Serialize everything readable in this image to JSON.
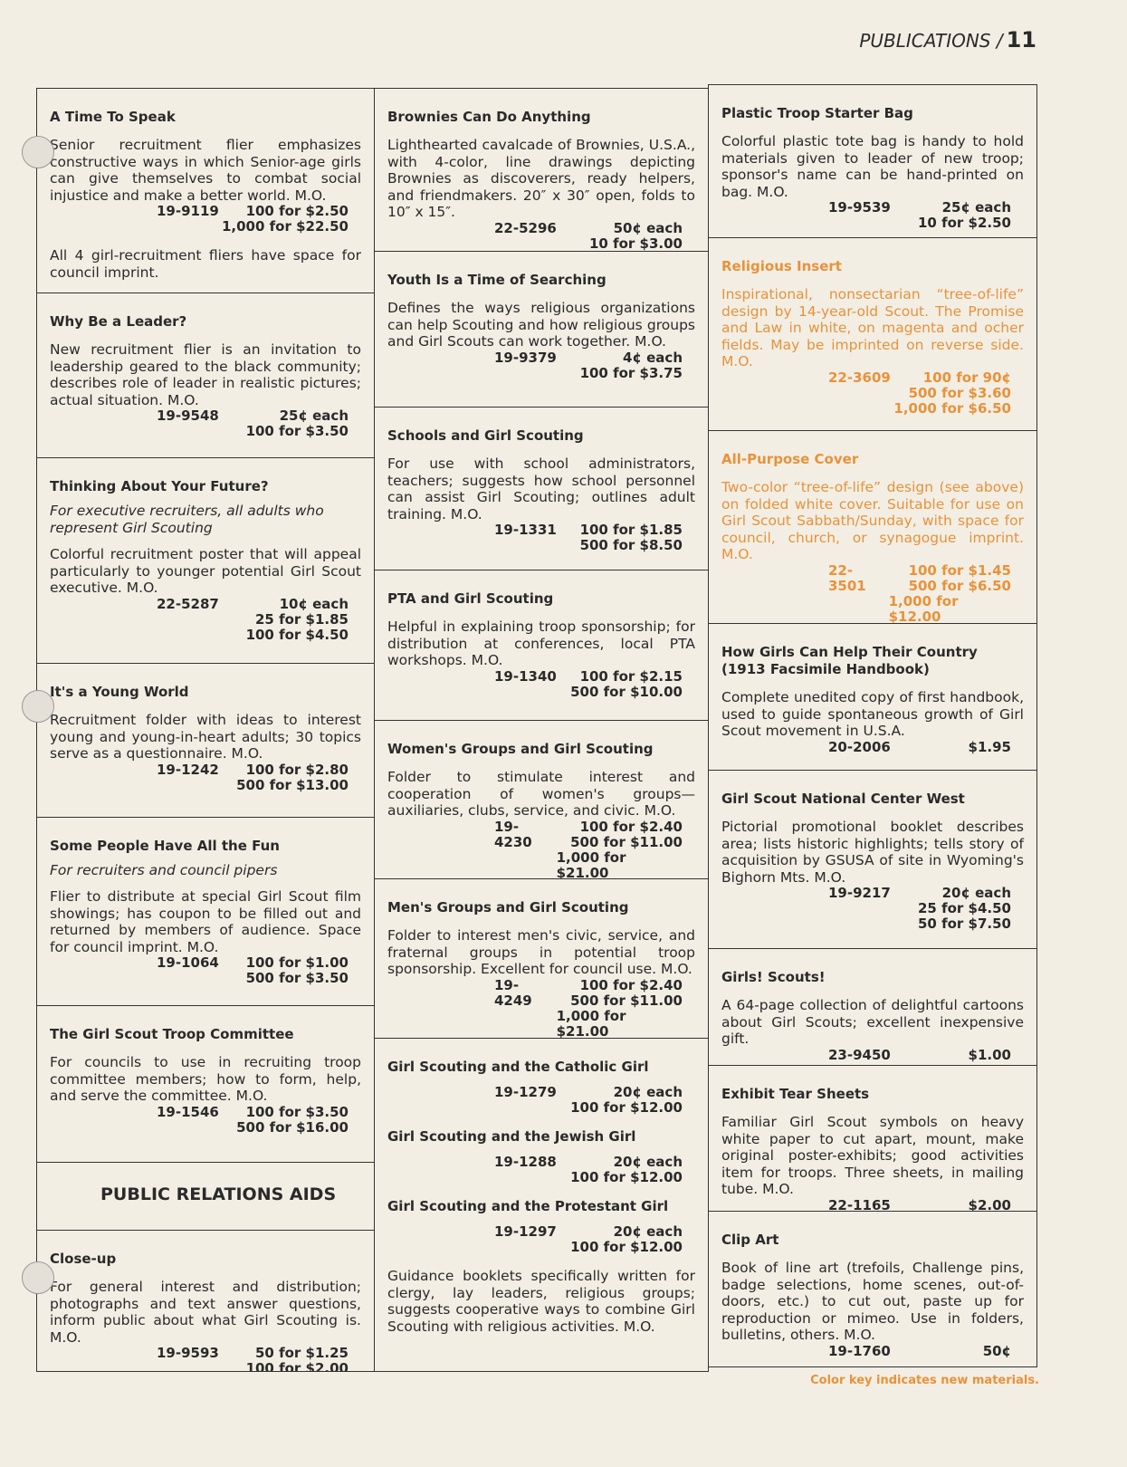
{
  "header": {
    "section": "PUBLICATIONS /",
    "page": "11"
  },
  "columns": [
    {
      "boxes": [
        {
          "entries": [
            {
              "title": "A Time To Speak",
              "text": "Senior recruitment flier emphasizes constructive ways in which Senior-age girls can give themselves to combat social injustice and make a better world. M.O.",
              "code": "19-9119",
              "prices": [
                "100 for $2.50",
                "1,000 for $22.50"
              ]
            }
          ],
          "note": "All 4 girl-recruitment fliers have space for council imprint."
        },
        {
          "entries": [
            {
              "title": "Why Be a Leader?",
              "text": "New recruitment flier is an invitation to leadership geared to the black community; describes role of leader in realistic pictures; actual situation. M.O.",
              "code": "19-9548",
              "prices": [
                "25¢ each",
                "100 for $3.50"
              ]
            }
          ]
        },
        {
          "entries": [
            {
              "title": "Thinking About Your Future?",
              "subtitle": "For executive recruiters, all adults who represent Girl Scouting",
              "text": "Colorful recruitment poster that will appeal particularly to younger potential Girl Scout executive. M.O.",
              "code": "22-5287",
              "prices": [
                "10¢ each",
                "25 for $1.85",
                "100 for $4.50"
              ]
            }
          ]
        },
        {
          "entries": [
            {
              "title": "It's a Young World",
              "text": "Recruitment folder with ideas to interest young and young-in-heart adults; 30 topics serve as a questionnaire. M.O.",
              "code": "19-1242",
              "prices": [
                "100 for $2.80",
                "500 for $13.00"
              ]
            }
          ]
        },
        {
          "entries": [
            {
              "title": "Some People Have All the Fun",
              "subtitle": "For recruiters and council pipers",
              "text": "Flier to distribute at special Girl Scout film showings; has coupon to be filled out and returned by members of audience. Space for council imprint. M.O.",
              "code": "19-1064",
              "prices": [
                "100 for $1.00",
                "500 for $3.50"
              ]
            }
          ]
        },
        {
          "entries": [
            {
              "title": "The Girl Scout Troop Committee",
              "text": "For councils to use in recruiting troop committee members; how to form, help, and serve the committee. M.O.",
              "code": "19-1546",
              "prices": [
                "100 for $3.50",
                "500 for $16.00"
              ]
            }
          ]
        },
        {
          "heading": "PUBLIC RELATIONS AIDS"
        },
        {
          "entries": [
            {
              "title": "Close-up",
              "text": "For general interest and distribution; photographs and text answer questions, inform public about what Girl Scouting is. M.O.",
              "code": "19-9593",
              "prices": [
                "50 for $1.25",
                "100 for $2.00"
              ]
            }
          ]
        }
      ]
    },
    {
      "boxes": [
        {
          "entries": [
            {
              "title": "Brownies Can Do Anything",
              "text": "Lighthearted cavalcade of Brownies, U.S.A., with 4-color, line drawings depicting Brownies as discoverers, ready helpers, and friendmakers. 20″ x 30″ open, folds to 10″ x 15″.",
              "code": "22-5296",
              "prices": [
                "50¢ each",
                "10 for $3.00"
              ]
            }
          ]
        },
        {
          "entries": [
            {
              "title": "Youth Is a Time of Searching",
              "text": "Defines the ways religious organizations can help Scouting and how religious groups and Girl Scouts can work together. M.O.",
              "code": "19-9379",
              "prices": [
                "4¢ each",
                "100 for $3.75"
              ]
            }
          ]
        },
        {
          "entries": [
            {
              "title": "Schools and Girl Scouting",
              "text": "For use with school administrators, teachers; suggests how school personnel can assist Girl Scouting; outlines adult training. M.O.",
              "code": "19-1331",
              "prices": [
                "100 for $1.85",
                "500 for $8.50"
              ]
            }
          ]
        },
        {
          "entries": [
            {
              "title": "PTA and Girl Scouting",
              "text": "Helpful in explaining troop sponsorship; for distribution at conferences, local PTA workshops. M.O.",
              "code": "19-1340",
              "prices": [
                "100 for $2.15",
                "500 for $10.00"
              ]
            }
          ]
        },
        {
          "entries": [
            {
              "title": "Women's Groups and Girl Scouting",
              "text": "Folder to stimulate interest and cooperation of women's groups—auxiliaries, clubs, service, and civic. M.O.",
              "code": "19-4230",
              "prices": [
                "100 for $2.40",
                "500 for $11.00",
                "1,000 for $21.00"
              ]
            }
          ]
        },
        {
          "entries": [
            {
              "title": "Men's Groups and Girl Scouting",
              "text": "Folder to interest men's civic, service, and fraternal groups in potential troop sponsorship. Excellent for council use. M.O.",
              "code": "19-4249",
              "prices": [
                "100 for $2.40",
                "500 for $11.00",
                "1,000 for $21.00"
              ]
            }
          ]
        },
        {
          "entries": [
            {
              "title": "Girl Scouting and the Catholic Girl",
              "code": "19-1279",
              "prices": [
                "20¢ each",
                "100 for $12.00"
              ]
            },
            {
              "title": "Girl Scouting and the Jewish Girl",
              "code": "19-1288",
              "prices": [
                "20¢ each",
                "100 for $12.00"
              ]
            },
            {
              "title": "Girl Scouting and the Protestant Girl",
              "code": "19-1297",
              "prices": [
                "20¢ each",
                "100 for $12.00"
              ]
            }
          ],
          "note": "Guidance booklets specifically written for clergy, lay leaders, religious groups; suggests cooperative ways to combine Girl Scouting with religious activities. M.O."
        }
      ]
    },
    {
      "boxes": [
        {
          "entries": [
            {
              "title": "Plastic Troop Starter Bag",
              "text": "Colorful plastic tote bag is handy to hold materials given to leader of new troop; sponsor's name can be hand-printed on bag. M.O.",
              "code": "19-9539",
              "prices": [
                "25¢ each",
                "10 for $2.50"
              ]
            }
          ]
        },
        {
          "color": "#e8923a",
          "entries": [
            {
              "title": "Religious Insert",
              "text": "Inspirational, nonsectarian “tree-of-life” design by 14-year-old Scout. The Promise and Law in white, on magenta and ocher fields. May be imprinted on reverse side. M.O.",
              "code": "22-3609",
              "prices": [
                "100 for 90¢",
                "500 for $3.60",
                "1,000 for $6.50"
              ]
            }
          ]
        },
        {
          "color": "#e8923a",
          "entries": [
            {
              "title": "All-Purpose Cover",
              "text": "Two-color “tree-of-life” design (see above) on folded white cover. Suitable for use on Girl Scout Sabbath/Sunday, with space for council, church, or synagogue imprint. M.O.",
              "code": "22-3501",
              "prices": [
                "100 for $1.45",
                "500 for $6.50",
                "1,000 for $12.00"
              ]
            }
          ]
        },
        {
          "entries": [
            {
              "title": "How Girls Can Help Their Country (1913 Facsimile Handbook)",
              "text": "Complete unedited copy of first handbook, used to guide spontaneous growth of Girl Scout movement in U.S.A.",
              "code": "20-2006",
              "prices": [
                "$1.95"
              ]
            }
          ]
        },
        {
          "entries": [
            {
              "title": "Girl Scout National Center West",
              "text": "Pictorial promotional booklet describes area; lists historic highlights; tells story of acquisition by GSUSA of site in Wyoming's Bighorn Mts. M.O.",
              "code": "19-9217",
              "prices": [
                "20¢ each",
                "25 for $4.50",
                "50 for $7.50"
              ]
            }
          ]
        },
        {
          "entries": [
            {
              "title": "Girls! Scouts!",
              "text": "A 64-page collection of delightful cartoons about Girl Scouts; excellent inexpensive gift.",
              "code": "23-9450",
              "prices": [
                "$1.00"
              ]
            }
          ]
        },
        {
          "entries": [
            {
              "title": "Exhibit Tear Sheets",
              "text": "Familiar Girl Scout symbols on heavy white paper to cut apart, mount, make original poster-exhibits; good activities item for troops. Three sheets, in mailing tube. M.O.",
              "code": "22-1165",
              "prices": [
                "$2.00"
              ]
            }
          ]
        },
        {
          "entries": [
            {
              "title": "Clip Art",
              "text": "Book of line art (trefoils, Challenge pins, badge selections, home scenes, out-of-doors, etc.) to cut out, paste up for reproduction or mimeo. Use in folders, bulletins, others. M.O.",
              "code": "19-1760",
              "prices": [
                "50¢"
              ]
            }
          ]
        }
      ]
    }
  ],
  "footer": {
    "text": "Color key indicates new materials.",
    "color": "#e8923a"
  }
}
